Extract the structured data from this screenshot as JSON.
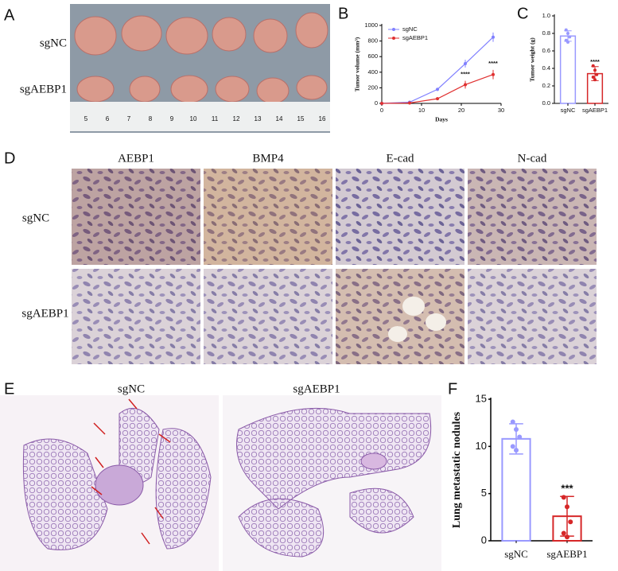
{
  "figure": {
    "panel_labels": [
      "A",
      "B",
      "C",
      "D",
      "E",
      "F"
    ],
    "photo_rows": [
      "sgNC",
      "sgAEBP1"
    ],
    "ruler": [
      "5",
      "6",
      "7",
      "8",
      "9",
      "10",
      "11",
      "12",
      "13",
      "14",
      "15",
      "16"
    ],
    "ihc_columns": [
      "AEBP1",
      "BMP4",
      "E-cad",
      "N-cad"
    ],
    "ihc_rows": [
      "sgNC",
      "sgAEBP1"
    ],
    "lung_columns": [
      "sgNC",
      "sgAEBP1"
    ]
  },
  "chart_data": [
    {
      "type": "line",
      "x_label": "Days",
      "y_label": "Tumor volume (mm³)",
      "x": [
        0,
        7,
        14,
        21,
        28
      ],
      "series": [
        {
          "name": "sgNC",
          "color": "#8080ff",
          "values": [
            0,
            15,
            180,
            510,
            850
          ],
          "errors": [
            0,
            5,
            20,
            50,
            60
          ]
        },
        {
          "name": "sgAEBP1",
          "color": "#e03030",
          "values": [
            0,
            5,
            60,
            240,
            370
          ],
          "errors": [
            0,
            3,
            15,
            50,
            60
          ]
        }
      ],
      "annotations": [
        {
          "x": 21,
          "text": "****"
        },
        {
          "x": 28,
          "text": "****"
        }
      ],
      "xlim": [
        0,
        30
      ],
      "xticks": [
        0,
        10,
        20,
        30
      ],
      "ylim": [
        0,
        1000
      ],
      "yticks": [
        0,
        200,
        400,
        600,
        800,
        1000
      ],
      "legend": "top-left"
    },
    {
      "type": "bar",
      "y_label": "Tumor weight (g)",
      "categories": [
        "sgNC",
        "sgAEBP1"
      ],
      "values": [
        0.77,
        0.34
      ],
      "errors": [
        0.06,
        0.08
      ],
      "colors": [
        "#9999ff",
        "#d62728"
      ],
      "points": [
        [
          0.84,
          0.8,
          0.76,
          0.72,
          0.7
        ],
        [
          0.43,
          0.38,
          0.33,
          0.3,
          0.27
        ]
      ],
      "significance": "****",
      "ylim": [
        0,
        1
      ],
      "yticks": [
        {
          "value": 0,
          "label": "0.0"
        },
        0.2,
        0.4,
        0.6,
        0.8,
        {
          "value": 1,
          "label": "1.0"
        }
      ]
    },
    {
      "type": "bar",
      "y_label": "Lung metastatic nodules",
      "categories": [
        "sgNC",
        "sgAEBP1"
      ],
      "values": [
        10.8,
        2.6
      ],
      "errors": [
        1.6,
        2.1
      ],
      "colors": [
        "#9999ff",
        "#d62728"
      ],
      "points": [
        [
          12.6,
          11.8,
          11,
          10,
          9.6
        ],
        [
          4.6,
          3.6,
          2,
          0.8,
          0.4
        ]
      ],
      "significance": "***",
      "ylim": [
        0,
        15
      ],
      "yticks": [
        0,
        5,
        10,
        15
      ]
    }
  ]
}
